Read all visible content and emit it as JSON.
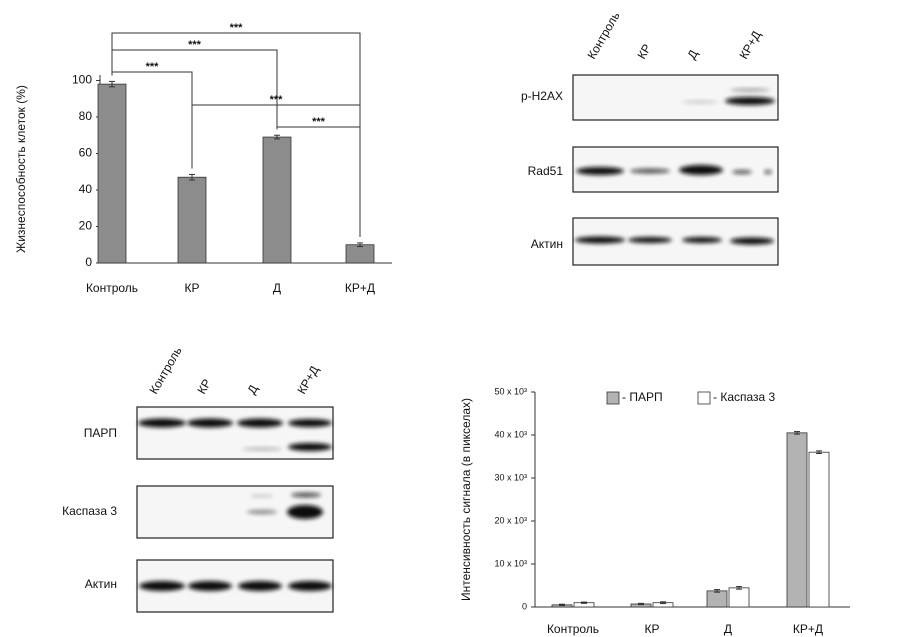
{
  "chart_data": [
    {
      "type": "bar",
      "ylabel": "Жизнеспособность клеток (%)",
      "categories": [
        "Контроль",
        "КР",
        "Д",
        "КР+Д"
      ],
      "values": [
        98,
        47,
        69,
        10
      ],
      "errors": [
        1.5,
        1.5,
        1,
        1
      ],
      "color": "#8c8c8c",
      "ylim": [
        0,
        103
      ],
      "yticks": [
        0,
        20,
        40,
        60,
        80,
        100
      ],
      "comparisons": [
        {
          "groups": [
            "Контроль",
            "КР"
          ],
          "label": "***"
        },
        {
          "groups": [
            "Контроль",
            "Д"
          ],
          "label": "***"
        },
        {
          "groups": [
            "Контроль",
            "КР+Д"
          ],
          "label": "***"
        },
        {
          "groups": [
            "КР",
            "КР+Д"
          ],
          "label": "***"
        },
        {
          "groups": [
            "Д",
            "КР+Д"
          ],
          "label": "***"
        }
      ]
    },
    {
      "type": "bar",
      "ylabel": "Интенсивность сигнала (в пикселах)",
      "categories": [
        "Контроль",
        "КР",
        "Д",
        "КР+Д"
      ],
      "series": [
        {
          "name": "- ПАРП",
          "color": "#b3b3b3",
          "values": [
            500,
            700,
            3750,
            40500
          ],
          "errors": [
            150,
            150,
            300,
            300
          ]
        },
        {
          "name": "- Каспаза 3",
          "color": "#ffffff",
          "values": [
            1000,
            1000,
            4450,
            36000
          ],
          "errors": [
            150,
            200,
            300,
            300
          ]
        }
      ],
      "ylim": [
        0,
        50000
      ],
      "yticks": [
        0,
        {
          "value": 10000,
          "label": "10 x 10³"
        },
        {
          "value": 20000,
          "label": "20 x 10³"
        },
        {
          "value": 30000,
          "label": "30 x 10³"
        },
        {
          "value": 40000,
          "label": "40 x 10³"
        },
        {
          "value": 50000,
          "label": "50 x 10³"
        }
      ],
      "legend": "top"
    }
  ],
  "blots": [
    {
      "lanes": [
        "Контроль",
        "КР",
        "Д",
        "КР+Д"
      ],
      "rows": [
        "p-H2AX",
        "Rad51",
        "Актин"
      ]
    },
    {
      "lanes": [
        "Контроль",
        "КР",
        "Д",
        "КР+Д"
      ],
      "rows": [
        "ПАРП",
        "Каспаза 3",
        "Актин"
      ]
    }
  ]
}
